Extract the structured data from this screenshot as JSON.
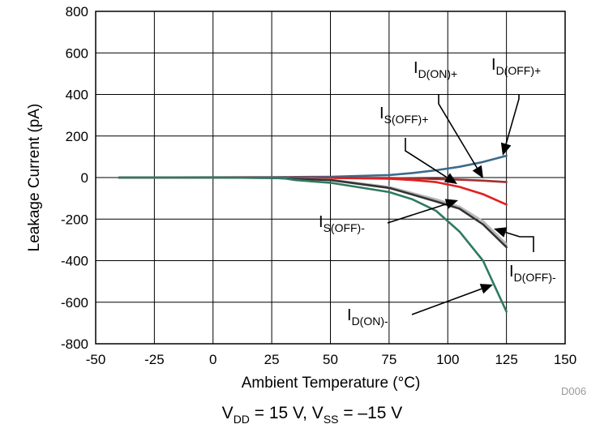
{
  "chart_data": {
    "type": "line",
    "xlabel": "Ambient Temperature (°C)",
    "ylabel": "Leakage Current (pA)",
    "xlim": [
      -50,
      150
    ],
    "ylim": [
      -800,
      800
    ],
    "x_ticks": [
      -50,
      -25,
      0,
      25,
      50,
      75,
      100,
      125,
      150
    ],
    "y_ticks": [
      -800,
      -600,
      -400,
      -200,
      0,
      200,
      400,
      600,
      800
    ],
    "grid": true,
    "series": [
      {
        "name": "ID(OFF)+",
        "main": "I",
        "sub": "D(OFF)+",
        "color": "#3a6b8c",
        "x": [
          -40,
          0,
          25,
          50,
          75,
          85,
          95,
          105,
          115,
          125
        ],
        "y": [
          0,
          1,
          2,
          4,
          12,
          22,
          35,
          52,
          75,
          105
        ]
      },
      {
        "name": "ID(ON)+",
        "main": "I",
        "sub": "D(ON)+",
        "color": "#a03030",
        "x": [
          -40,
          0,
          25,
          50,
          75,
          85,
          95,
          105,
          115,
          125
        ],
        "y": [
          0,
          0,
          0,
          -1,
          -2,
          -4,
          -7,
          -10,
          -15,
          -22
        ]
      },
      {
        "name": "IS(OFF)+",
        "main": "I",
        "sub": "S(OFF)+",
        "color": "#e02020",
        "x": [
          -40,
          0,
          25,
          50,
          75,
          85,
          95,
          105,
          115,
          125
        ],
        "y": [
          0,
          0,
          -1,
          -2,
          -6,
          -12,
          -22,
          -45,
          -80,
          -130
        ]
      },
      {
        "name": "IS(OFF)-",
        "main": "I",
        "sub": "S(OFF)-",
        "color": "#b8b8b8",
        "x": [
          -40,
          0,
          25,
          50,
          75,
          85,
          95,
          105,
          115,
          125
        ],
        "y": [
          0,
          0,
          -2,
          -10,
          -45,
          -75,
          -105,
          -140,
          -210,
          -320
        ]
      },
      {
        "name": "ID(OFF)-",
        "main": "I",
        "sub": "D(OFF)-",
        "color": "#333333",
        "x": [
          -40,
          0,
          25,
          50,
          75,
          85,
          95,
          105,
          115,
          125
        ],
        "y": [
          0,
          0,
          -2,
          -12,
          -50,
          -82,
          -115,
          -150,
          -225,
          -335
        ]
      },
      {
        "name": "ID(ON)-",
        "main": "I",
        "sub": "D(ON)-",
        "color": "#2e7a60",
        "x": [
          -40,
          0,
          25,
          30,
          35,
          50,
          75,
          85,
          95,
          105,
          115,
          125
        ],
        "y": [
          0,
          0,
          -2,
          -3,
          -12,
          -25,
          -70,
          -105,
          -160,
          -260,
          -400,
          -645
        ]
      }
    ],
    "annotations": [
      {
        "series": "ID(OFF)+",
        "main": "I",
        "sub": "D(OFF)+"
      },
      {
        "series": "ID(ON)+",
        "main": "I",
        "sub": "D(ON)+"
      },
      {
        "series": "IS(OFF)+",
        "main": "I",
        "sub": "S(OFF)+"
      },
      {
        "series": "IS(OFF)-",
        "main": "I",
        "sub": "S(OFF)-"
      },
      {
        "series": "ID(OFF)-",
        "main": "I",
        "sub": "D(OFF)-"
      },
      {
        "series": "ID(ON)-",
        "main": "I",
        "sub": "D(ON)-"
      }
    ],
    "figure_id": "D006",
    "caption": {
      "v1_main": "V",
      "v1_sub": "DD",
      "v1_rest": " = 15 V, ",
      "v2_main": "V",
      "v2_sub": "SS",
      "v2_rest": " = –15 V"
    }
  }
}
